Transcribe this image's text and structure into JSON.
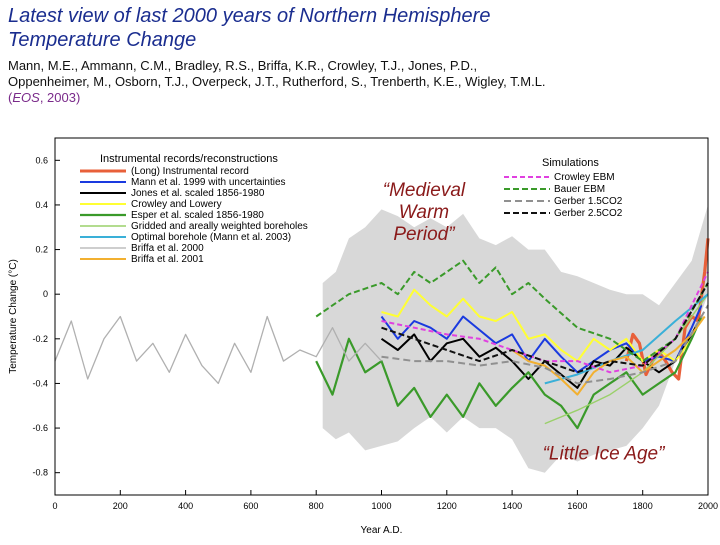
{
  "slide": {
    "title_line1": "Latest view of last 2000 years of Northern Hemisphere",
    "title_line2": "Temperature Change",
    "authors_line1": "Mann, M.E., Ammann, C.M., Bradley, R.S., Briffa, K.R., Crowley, T.J., Jones, P.D.,",
    "authors_line2": "Oppenheimer, M., Osborn, T.J., Overpeck, J.T., Rutherford, S., Trenberth, K.E., Wigley, T.M.L.",
    "source_open": "(",
    "source_journal": "EOS",
    "source_close": ", 2003)"
  },
  "chart_data": {
    "type": "line",
    "xlabel": "Year A.D.",
    "ylabel": "Temperature Change (°C)",
    "xlim": [
      0,
      2000
    ],
    "ylim": [
      -0.9,
      0.7
    ],
    "x_ticks": [
      0,
      200,
      400,
      600,
      800,
      1000,
      1200,
      1400,
      1600,
      1800,
      2000
    ],
    "y_ticks": [
      -0.8,
      -0.6,
      -0.4,
      -0.2,
      0,
      0.2,
      0.4,
      0.6
    ],
    "legend_left_title": "Instrumental records/reconstructions",
    "legend_right_title": "Simulations",
    "annotations": [
      {
        "id": "medieval",
        "text": [
          "“Medieval",
          "Warm",
          "Period”"
        ],
        "x": 1130,
        "y": 0.44
      },
      {
        "id": "lia",
        "text": [
          "“Little Ice Age”"
        ],
        "x": 1680,
        "y": -0.74
      }
    ],
    "uncertainty_band": {
      "x": [
        820,
        860,
        900,
        950,
        1000,
        1050,
        1100,
        1150,
        1200,
        1250,
        1300,
        1350,
        1400,
        1450,
        1500,
        1550,
        1600,
        1650,
        1700,
        1750,
        1800,
        1850,
        1900,
        1950,
        2000
      ],
      "upper": [
        0.05,
        0.1,
        0.25,
        0.3,
        0.38,
        0.35,
        0.3,
        0.34,
        0.3,
        0.36,
        0.25,
        0.22,
        0.26,
        0.2,
        0.2,
        0.1,
        0.08,
        0.05,
        0.02,
        0.0,
        0.0,
        -0.05,
        0.05,
        0.15,
        0.4
      ],
      "lower": [
        -0.6,
        -0.65,
        -0.62,
        -0.7,
        -0.68,
        -0.66,
        -0.6,
        -0.55,
        -0.62,
        -0.55,
        -0.6,
        -0.6,
        -0.65,
        -0.78,
        -0.8,
        -0.72,
        -0.75,
        -0.72,
        -0.7,
        -0.68,
        -0.6,
        -0.5,
        -0.3,
        -0.2,
        0.0
      ],
      "color": "#d8d8d8"
    },
    "series": [
      {
        "name": "(Long) Instrumental record",
        "color": "#e8603a",
        "width": 3.2,
        "x": [
          1750,
          1770,
          1790,
          1810,
          1830,
          1850,
          1870,
          1890,
          1910,
          1930,
          1950,
          1970,
          1990,
          2000
        ],
        "y": [
          -0.3,
          -0.18,
          -0.22,
          -0.36,
          -0.3,
          -0.26,
          -0.3,
          -0.35,
          -0.38,
          -0.15,
          -0.1,
          -0.12,
          0.1,
          0.25
        ]
      },
      {
        "name": "Mann et al. 1999 with uncertainties",
        "color": "#1a3adf",
        "width": 2,
        "x": [
          1000,
          1050,
          1100,
          1150,
          1200,
          1250,
          1300,
          1350,
          1400,
          1450,
          1500,
          1550,
          1600,
          1650,
          1700,
          1750,
          1800,
          1850,
          1900,
          1950,
          1980
        ],
        "y": [
          -0.1,
          -0.2,
          -0.12,
          -0.15,
          -0.2,
          -0.1,
          -0.16,
          -0.22,
          -0.18,
          -0.3,
          -0.2,
          -0.28,
          -0.35,
          -0.3,
          -0.25,
          -0.22,
          -0.3,
          -0.28,
          -0.3,
          -0.15,
          -0.05
        ]
      },
      {
        "name": "Jones et al. scaled 1856-1980",
        "color": "#000000",
        "width": 2,
        "x": [
          1000,
          1050,
          1100,
          1150,
          1200,
          1250,
          1300,
          1350,
          1400,
          1450,
          1500,
          1550,
          1600,
          1650,
          1700,
          1750,
          1800,
          1850,
          1900,
          1950,
          1980
        ],
        "y": [
          -0.2,
          -0.25,
          -0.18,
          -0.3,
          -0.22,
          -0.2,
          -0.28,
          -0.24,
          -0.3,
          -0.38,
          -0.3,
          -0.36,
          -0.42,
          -0.3,
          -0.32,
          -0.24,
          -0.3,
          -0.35,
          -0.3,
          -0.18,
          -0.1
        ]
      },
      {
        "name": "Crowley and Lowery",
        "color": "#ffff33",
        "width": 2,
        "x": [
          1000,
          1050,
          1100,
          1150,
          1200,
          1250,
          1300,
          1350,
          1400,
          1450,
          1500,
          1550,
          1600,
          1650,
          1700,
          1750,
          1800,
          1850,
          1900,
          1950
        ],
        "y": [
          -0.08,
          -0.1,
          0.02,
          -0.05,
          -0.1,
          -0.02,
          -0.1,
          -0.12,
          -0.08,
          -0.2,
          -0.18,
          -0.25,
          -0.3,
          -0.2,
          -0.25,
          -0.2,
          -0.3,
          -0.25,
          -0.3,
          -0.2
        ]
      },
      {
        "name": "Esper et al. scaled 1856-1980",
        "color": "#3a9a2a",
        "width": 2.2,
        "x": [
          800,
          850,
          900,
          950,
          1000,
          1050,
          1100,
          1150,
          1200,
          1250,
          1300,
          1350,
          1400,
          1450,
          1500,
          1550,
          1600,
          1650,
          1700,
          1750,
          1800,
          1850,
          1900,
          1950,
          1980
        ],
        "y": [
          -0.3,
          -0.45,
          -0.2,
          -0.35,
          -0.3,
          -0.5,
          -0.42,
          -0.55,
          -0.45,
          -0.55,
          -0.4,
          -0.5,
          -0.42,
          -0.35,
          -0.45,
          -0.5,
          -0.6,
          -0.45,
          -0.4,
          -0.35,
          -0.45,
          -0.4,
          -0.35,
          -0.2,
          -0.1
        ]
      },
      {
        "name": "Gridded and areally weighted boreholes",
        "color": "#9ad06a",
        "width": 1.4,
        "x": [
          1500,
          1600,
          1700,
          1800,
          1900,
          2000
        ],
        "y": [
          -0.58,
          -0.52,
          -0.45,
          -0.35,
          -0.2,
          0.0
        ]
      },
      {
        "name": "Optimal borehole (Mann et al. 2003)",
        "color": "#3ab0d8",
        "width": 2,
        "x": [
          1500,
          1600,
          1700,
          1800,
          1900,
          2000
        ],
        "y": [
          -0.4,
          -0.36,
          -0.3,
          -0.25,
          -0.12,
          0.0
        ]
      },
      {
        "name": "Briffa et al. 2000",
        "color": "#b0b0b0",
        "width": 1.3,
        "x": [
          0,
          50,
          100,
          150,
          200,
          250,
          300,
          350,
          400,
          450,
          500,
          550,
          600,
          650,
          700,
          750,
          800,
          850,
          900,
          950,
          1000
        ],
        "y": [
          -0.3,
          -0.12,
          -0.38,
          -0.2,
          -0.1,
          -0.3,
          -0.22,
          -0.35,
          -0.18,
          -0.32,
          -0.4,
          -0.22,
          -0.35,
          -0.1,
          -0.3,
          -0.25,
          -0.28,
          -0.15,
          -0.3,
          -0.22,
          -0.3
        ]
      },
      {
        "name": "Briffa et al. 2001",
        "color": "#f2b030",
        "width": 2,
        "x": [
          1400,
          1450,
          1500,
          1550,
          1600,
          1650,
          1700,
          1750,
          1800,
          1850,
          1900,
          1950,
          1990
        ],
        "y": [
          -0.25,
          -0.3,
          -0.32,
          -0.38,
          -0.45,
          -0.35,
          -0.3,
          -0.28,
          -0.35,
          -0.3,
          -0.25,
          -0.18,
          -0.1
        ]
      },
      {
        "name": "Crowley EBM",
        "color": "#e040e0",
        "width": 2,
        "dash": "5,3",
        "x": [
          1000,
          1100,
          1200,
          1300,
          1400,
          1500,
          1600,
          1700,
          1800,
          1900,
          2000
        ],
        "y": [
          -0.12,
          -0.15,
          -0.18,
          -0.2,
          -0.25,
          -0.3,
          -0.3,
          -0.35,
          -0.32,
          -0.2,
          0.1
        ]
      },
      {
        "name": "Bauer EBM",
        "color": "#3a9a2a",
        "width": 2,
        "dash": "6,3",
        "x": [
          800,
          900,
          1000,
          1050,
          1100,
          1150,
          1200,
          1250,
          1300,
          1350,
          1400,
          1450,
          1500,
          1600,
          1700,
          1800,
          1900,
          2000
        ],
        "y": [
          -0.1,
          0.0,
          0.05,
          0.0,
          0.1,
          0.05,
          0.1,
          0.15,
          0.05,
          0.12,
          0.0,
          0.05,
          -0.02,
          -0.15,
          -0.2,
          -0.3,
          -0.2,
          0.05
        ]
      },
      {
        "name": "Gerber 1.5CO2",
        "color": "#909090",
        "width": 2,
        "dash": "7,4",
        "x": [
          1000,
          1100,
          1200,
          1300,
          1400,
          1500,
          1600,
          1700,
          1800,
          1900,
          2000
        ],
        "y": [
          -0.28,
          -0.3,
          -0.3,
          -0.32,
          -0.3,
          -0.33,
          -0.4,
          -0.38,
          -0.35,
          -0.3,
          -0.05
        ]
      },
      {
        "name": "Gerber 2.5CO2",
        "color": "#111111",
        "width": 2,
        "dash": "6,3",
        "x": [
          1000,
          1100,
          1200,
          1300,
          1400,
          1500,
          1600,
          1700,
          1800,
          1900,
          2000
        ],
        "y": [
          -0.15,
          -0.2,
          -0.25,
          -0.3,
          -0.25,
          -0.3,
          -0.35,
          -0.3,
          -0.32,
          -0.2,
          0.05
        ]
      }
    ],
    "legend_left": [
      "(Long) Instrumental record",
      "Mann et al. 1999 with uncertainties",
      "Jones et al. scaled 1856-1980",
      "Crowley and Lowery",
      "Esper et al. scaled 1856-1980",
      "Gridded and areally weighted boreholes",
      "Optimal borehole (Mann et al. 2003)",
      "Briffa et al. 2000",
      "Briffa et al. 2001"
    ],
    "legend_right": [
      "Crowley EBM",
      "Bauer EBM",
      "Gerber 1.5CO2",
      "Gerber 2.5CO2"
    ]
  }
}
